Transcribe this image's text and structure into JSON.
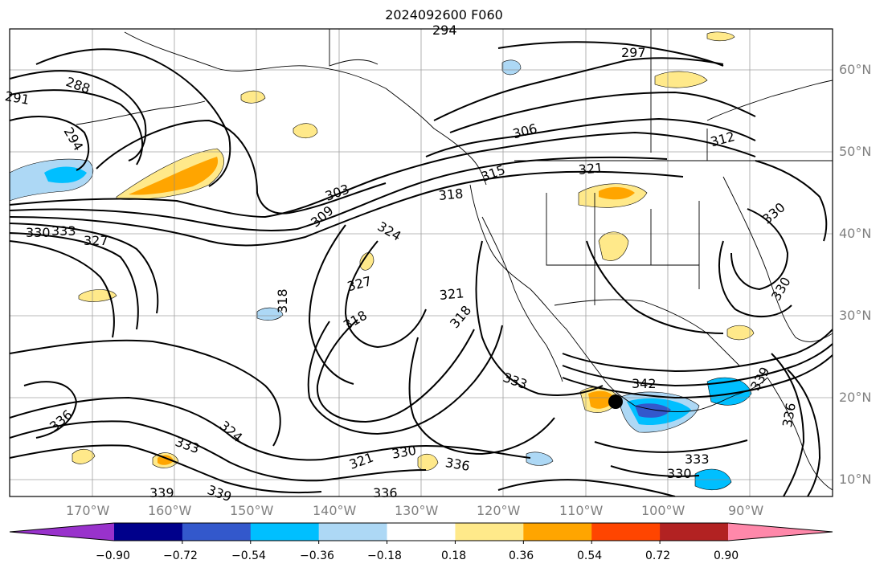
{
  "title": "2024092600 F060",
  "lat_labels": [
    "60°N",
    "50°N",
    "40°N",
    "30°N",
    "20°N",
    "10°N"
  ],
  "lon_labels": [
    "170°W",
    "160°W",
    "150°W",
    "140°W",
    "130°W",
    "120°W",
    "110°W",
    "100°W",
    "90°W"
  ],
  "colorbar": {
    "colors": [
      "#9932cc",
      "#00008b",
      "#3358cc",
      "#00bfff",
      "#add8f5",
      "#ffffff",
      "#ffe98a",
      "#ffa500",
      "#ff4500",
      "#b22222",
      "#ff88aa"
    ],
    "tick_labels": [
      "−0.90",
      "−0.72",
      "−0.54",
      "−0.36",
      "−0.18",
      "0.18",
      "0.36",
      "0.54",
      "0.72",
      "0.90"
    ]
  },
  "contour_labels": [
    "294",
    "297",
    "288",
    "291",
    "294",
    "306",
    "312",
    "321",
    "315",
    "318",
    "303",
    "309",
    "324",
    "327",
    "330",
    "333",
    "327",
    "321",
    "318",
    "318",
    "318",
    "342",
    "333",
    "336",
    "324",
    "333",
    "321",
    "330",
    "336",
    "339",
    "339",
    "336",
    "339",
    "330",
    "333",
    "330",
    "336",
    "330"
  ],
  "colors": {
    "contour": "#000000",
    "frame": "#000000",
    "grid": "#888888",
    "state": "#000000"
  }
}
